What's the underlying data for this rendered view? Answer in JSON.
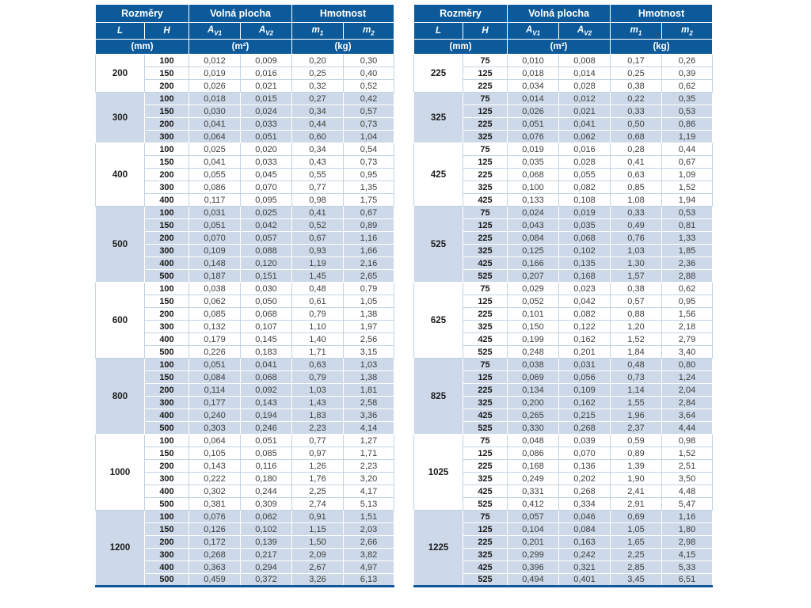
{
  "colors": {
    "header_bg": "#0d5a9b",
    "band_row_bg": "#cdd9e8",
    "header_text": "#ffffff",
    "body_text": "#3e3e3e",
    "grid_light_blue": "#c3d3e3"
  },
  "header": {
    "groups": [
      "Rozměry",
      "Volná plocha",
      "Hmotnost"
    ],
    "columns": [
      {
        "base": "L",
        "sub": ""
      },
      {
        "base": "H",
        "sub": ""
      },
      {
        "base": "A",
        "sub": "V1"
      },
      {
        "base": "A",
        "sub": "V2"
      },
      {
        "base": "m",
        "sub": "1"
      },
      {
        "base": "m",
        "sub": "2"
      }
    ],
    "units": [
      "(mm)",
      "(m²)",
      "(kg)"
    ]
  },
  "tables": [
    {
      "name": "left",
      "groups": [
        {
          "L": "200",
          "rows": [
            [
              "100",
              "0,012",
              "0,009",
              "0,20",
              "0,30"
            ],
            [
              "150",
              "0,019",
              "0,016",
              "0,25",
              "0,40"
            ],
            [
              "200",
              "0,026",
              "0,021",
              "0,32",
              "0,52"
            ]
          ]
        },
        {
          "L": "300",
          "rows": [
            [
              "100",
              "0,018",
              "0,015",
              "0,27",
              "0,42"
            ],
            [
              "150",
              "0,030",
              "0,024",
              "0,34",
              "0,57"
            ],
            [
              "200",
              "0,041",
              "0,033",
              "0,44",
              "0,73"
            ],
            [
              "300",
              "0,064",
              "0,051",
              "0,60",
              "1,04"
            ]
          ]
        },
        {
          "L": "400",
          "rows": [
            [
              "100",
              "0,025",
              "0,020",
              "0,34",
              "0,54"
            ],
            [
              "150",
              "0,041",
              "0,033",
              "0,43",
              "0,73"
            ],
            [
              "200",
              "0,055",
              "0,045",
              "0,55",
              "0,95"
            ],
            [
              "300",
              "0,086",
              "0,070",
              "0,77",
              "1,35"
            ],
            [
              "400",
              "0,117",
              "0,095",
              "0,98",
              "1,75"
            ]
          ]
        },
        {
          "L": "500",
          "rows": [
            [
              "100",
              "0,031",
              "0,025",
              "0,41",
              "0,67"
            ],
            [
              "150",
              "0,051",
              "0,042",
              "0,52",
              "0,89"
            ],
            [
              "200",
              "0,070",
              "0,057",
              "0,67",
              "1,16"
            ],
            [
              "300",
              "0,109",
              "0,088",
              "0,93",
              "1,66"
            ],
            [
              "400",
              "0,148",
              "0,120",
              "1,19",
              "2,16"
            ],
            [
              "500",
              "0,187",
              "0,151",
              "1,45",
              "2,65"
            ]
          ]
        },
        {
          "L": "600",
          "rows": [
            [
              "100",
              "0,038",
              "0,030",
              "0,48",
              "0,79"
            ],
            [
              "150",
              "0,062",
              "0,050",
              "0,61",
              "1,05"
            ],
            [
              "200",
              "0,085",
              "0,068",
              "0,79",
              "1,38"
            ],
            [
              "300",
              "0,132",
              "0,107",
              "1,10",
              "1,97"
            ],
            [
              "400",
              "0,179",
              "0,145",
              "1,40",
              "2,56"
            ],
            [
              "500",
              "0,226",
              "0,183",
              "1,71",
              "3,15"
            ]
          ]
        },
        {
          "L": "800",
          "rows": [
            [
              "100",
              "0,051",
              "0,041",
              "0,63",
              "1,03"
            ],
            [
              "150",
              "0,084",
              "0,068",
              "0,79",
              "1,38"
            ],
            [
              "200",
              "0,114",
              "0,092",
              "1,03",
              "1,81"
            ],
            [
              "300",
              "0,177",
              "0,143",
              "1,43",
              "2,58"
            ],
            [
              "400",
              "0,240",
              "0,194",
              "1,83",
              "3,36"
            ],
            [
              "500",
              "0,303",
              "0,246",
              "2,23",
              "4,14"
            ]
          ]
        },
        {
          "L": "1000",
          "rows": [
            [
              "100",
              "0,064",
              "0,051",
              "0,77",
              "1,27"
            ],
            [
              "150",
              "0,105",
              "0,085",
              "0,97",
              "1,71"
            ],
            [
              "200",
              "0,143",
              "0,116",
              "1,26",
              "2,23"
            ],
            [
              "300",
              "0,222",
              "0,180",
              "1,76",
              "3,20"
            ],
            [
              "400",
              "0,302",
              "0,244",
              "2,25",
              "4,17"
            ],
            [
              "500",
              "0,381",
              "0,309",
              "2,74",
              "5,13"
            ]
          ]
        },
        {
          "L": "1200",
          "rows": [
            [
              "100",
              "0,076",
              "0,062",
              "0,91",
              "1,51"
            ],
            [
              "150",
              "0,126",
              "0,102",
              "1,15",
              "2,03"
            ],
            [
              "200",
              "0,172",
              "0,139",
              "1,50",
              "2,66"
            ],
            [
              "300",
              "0,268",
              "0,217",
              "2,09",
              "3,82"
            ],
            [
              "400",
              "0,363",
              "0,294",
              "2,67",
              "4,97"
            ],
            [
              "500",
              "0,459",
              "0,372",
              "3,26",
              "6,13"
            ]
          ]
        }
      ]
    },
    {
      "name": "right",
      "groups": [
        {
          "L": "225",
          "rows": [
            [
              "75",
              "0,010",
              "0,008",
              "0,17",
              "0,26"
            ],
            [
              "125",
              "0,018",
              "0,014",
              "0,25",
              "0,39"
            ],
            [
              "225",
              "0,034",
              "0,028",
              "0,38",
              "0,62"
            ]
          ]
        },
        {
          "L": "325",
          "rows": [
            [
              "75",
              "0,014",
              "0,012",
              "0,22",
              "0,35"
            ],
            [
              "125",
              "0,026",
              "0,021",
              "0,33",
              "0,53"
            ],
            [
              "225",
              "0,051",
              "0,041",
              "0,50",
              "0,86"
            ],
            [
              "325",
              "0,076",
              "0,062",
              "0,68",
              "1,19"
            ]
          ]
        },
        {
          "L": "425",
          "rows": [
            [
              "75",
              "0,019",
              "0,016",
              "0,28",
              "0,44"
            ],
            [
              "125",
              "0,035",
              "0,028",
              "0,41",
              "0,67"
            ],
            [
              "225",
              "0,068",
              "0,055",
              "0,63",
              "1,09"
            ],
            [
              "325",
              "0,100",
              "0,082",
              "0,85",
              "1,52"
            ],
            [
              "425",
              "0,133",
              "0,108",
              "1,08",
              "1,94"
            ]
          ]
        },
        {
          "L": "525",
          "rows": [
            [
              "75",
              "0,024",
              "0,019",
              "0,33",
              "0,53"
            ],
            [
              "125",
              "0,043",
              "0,035",
              "0,49",
              "0,81"
            ],
            [
              "225",
              "0,084",
              "0,068",
              "0,76",
              "1,33"
            ],
            [
              "325",
              "0,125",
              "0,102",
              "1,03",
              "1,85"
            ],
            [
              "425",
              "0,166",
              "0,135",
              "1,30",
              "2,36"
            ],
            [
              "525",
              "0,207",
              "0,168",
              "1,57",
              "2,88"
            ]
          ]
        },
        {
          "L": "625",
          "rows": [
            [
              "75",
              "0,029",
              "0,023",
              "0,38",
              "0,62"
            ],
            [
              "125",
              "0,052",
              "0,042",
              "0,57",
              "0,95"
            ],
            [
              "225",
              "0,101",
              "0,082",
              "0,88",
              "1,56"
            ],
            [
              "325",
              "0,150",
              "0,122",
              "1,20",
              "2,18"
            ],
            [
              "425",
              "0,199",
              "0,162",
              "1,52",
              "2,79"
            ],
            [
              "525",
              "0,248",
              "0,201",
              "1,84",
              "3,40"
            ]
          ]
        },
        {
          "L": "825",
          "rows": [
            [
              "75",
              "0,038",
              "0,031",
              "0,48",
              "0,80"
            ],
            [
              "125",
              "0,069",
              "0,056",
              "0,73",
              "1,24"
            ],
            [
              "225",
              "0,134",
              "0,109",
              "1,14",
              "2,04"
            ],
            [
              "325",
              "0,200",
              "0,162",
              "1,55",
              "2,84"
            ],
            [
              "425",
              "0,265",
              "0,215",
              "1,96",
              "3,64"
            ],
            [
              "525",
              "0,330",
              "0,268",
              "2,37",
              "4,44"
            ]
          ]
        },
        {
          "L": "1025",
          "rows": [
            [
              "75",
              "0,048",
              "0,039",
              "0,59",
              "0,98"
            ],
            [
              "125",
              "0,086",
              "0,070",
              "0,89",
              "1,52"
            ],
            [
              "225",
              "0,168",
              "0,136",
              "1,39",
              "2,51"
            ],
            [
              "325",
              "0,249",
              "0,202",
              "1,90",
              "3,50"
            ],
            [
              "425",
              "0,331",
              "0,268",
              "2,41",
              "4,48"
            ],
            [
              "525",
              "0,412",
              "0,334",
              "2,91",
              "5,47"
            ]
          ]
        },
        {
          "L": "1225",
          "rows": [
            [
              "75",
              "0,057",
              "0,046",
              "0,69",
              "1,16"
            ],
            [
              "125",
              "0,104",
              "0,084",
              "1,05",
              "1,80"
            ],
            [
              "225",
              "0,201",
              "0,163",
              "1,65",
              "2,98"
            ],
            [
              "325",
              "0,299",
              "0,242",
              "2,25",
              "4,15"
            ],
            [
              "425",
              "0,396",
              "0,321",
              "2,85",
              "5,33"
            ],
            [
              "525",
              "0,494",
              "0,401",
              "3,45",
              "6,51"
            ]
          ]
        }
      ]
    }
  ]
}
